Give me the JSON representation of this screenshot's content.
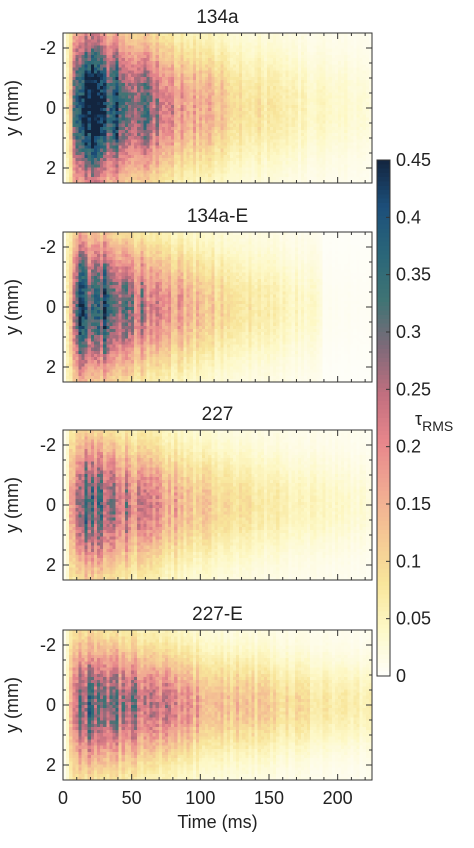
{
  "chart_data": {
    "type": "heatmap",
    "xlabel": "Time (ms)",
    "ylabel": "y (mm)",
    "xlim": [
      0,
      225
    ],
    "ylim": [
      2.5,
      -2.5
    ],
    "x_ticks": [
      0,
      50,
      100,
      150,
      200
    ],
    "y_ticks": [
      -2,
      0,
      2
    ],
    "colorbar": {
      "label_main": "τ",
      "label_sub": "RMS",
      "range": [
        0,
        0.45
      ],
      "ticks": [
        "0.45",
        "0.4",
        "0.35",
        "0.3",
        "0.25",
        "0.2",
        "0.15",
        "0.1",
        "0.05",
        "0"
      ],
      "colors": [
        "#fefefa",
        "#fdf8c6",
        "#f8e59a",
        "#f5c794",
        "#f0a892",
        "#e7868b",
        "#c16f7f",
        "#7f6a79",
        "#3f7474",
        "#2a6679",
        "#1c4f7a",
        "#13253f"
      ]
    },
    "panels": [
      {
        "title": "134a",
        "peak": 0.42,
        "peak_time_ms": 25,
        "decay_ms": 65,
        "half_width_mm": 1.9,
        "signal_end_ms": 225
      },
      {
        "title": "134a-E",
        "peak": 0.35,
        "peak_time_ms": 30,
        "decay_ms": 60,
        "half_width_mm": 1.7,
        "signal_end_ms": 190
      },
      {
        "title": "227",
        "peak": 0.3,
        "peak_time_ms": 15,
        "decay_ms": 80,
        "half_width_mm": 1.6,
        "signal_end_ms": 225
      },
      {
        "title": "227-E",
        "peak": 0.3,
        "peak_time_ms": 20,
        "decay_ms": 110,
        "half_width_mm": 1.5,
        "signal_end_ms": 225
      }
    ]
  }
}
